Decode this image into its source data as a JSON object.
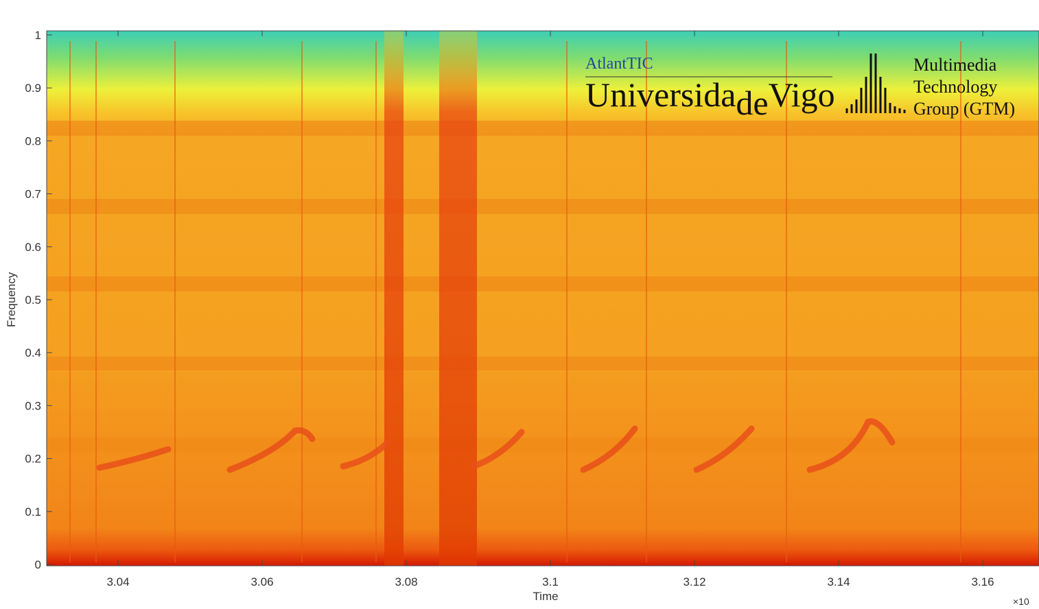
{
  "chart_data": {
    "type": "spectrogram",
    "x_label": "Time",
    "y_label": "Frequency",
    "x_exponent_label": "×10",
    "xlim": [
      3.03,
      3.17
    ],
    "xticks": [
      3.04,
      3.06,
      3.08,
      3.1,
      3.12,
      3.14,
      3.16
    ],
    "ylim": [
      0,
      1
    ],
    "yticks": [
      0,
      0.1,
      0.2,
      0.3,
      0.4,
      0.5,
      0.6,
      0.7,
      0.8,
      0.9,
      1
    ]
  },
  "logo": {
    "institute": "AtlantTIC",
    "university_a": "Universida",
    "university_b": "de",
    "university_c": "Vigo",
    "group_1": "Multimedia",
    "group_2": "Technology",
    "group_3": "Group (GTM)"
  }
}
